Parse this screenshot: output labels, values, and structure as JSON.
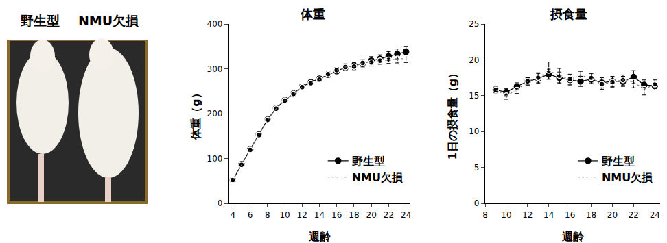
{
  "photo_labels": [
    "野生型",
    "NMU欠損"
  ],
  "chart_data": [
    {
      "type": "line",
      "title": "体重",
      "x_label": "週齢",
      "y_label": "体重（g）",
      "x": [
        4,
        5,
        6,
        7,
        8,
        9,
        10,
        11,
        12,
        13,
        14,
        15,
        16,
        17,
        18,
        19,
        20,
        21,
        22,
        23,
        24
      ],
      "series": [
        {
          "name": "野生型",
          "color": "#000000",
          "marker": "circle",
          "line_style": "solid",
          "values": [
            52,
            87,
            120,
            153,
            187,
            212,
            230,
            245,
            260,
            270,
            278,
            287,
            295,
            303,
            307,
            312,
            318,
            322,
            328,
            333,
            338
          ],
          "error": [
            3,
            3,
            3,
            3,
            3,
            4,
            4,
            4,
            4,
            5,
            5,
            6,
            6,
            7,
            7,
            8,
            9,
            9,
            10,
            11,
            12
          ]
        },
        {
          "name": "NMU欠損",
          "color": "#000000",
          "marker": "circle-open",
          "line_style": "dot",
          "values": [
            52,
            86,
            119,
            152,
            186,
            211,
            229,
            244,
            259,
            268,
            276,
            288,
            297,
            304,
            305,
            313,
            314,
            318,
            320,
            322,
            323
          ],
          "error": [
            3,
            3,
            3,
            3,
            3,
            4,
            4,
            4,
            4,
            5,
            5,
            6,
            6,
            7,
            7,
            7,
            8,
            8,
            8,
            9,
            9
          ]
        }
      ],
      "xlim": [
        3.5,
        24.5
      ],
      "xticks": [
        4,
        6,
        8,
        10,
        12,
        14,
        16,
        18,
        20,
        22,
        24
      ],
      "ylim": [
        0,
        400
      ],
      "yticks": [
        0,
        100,
        200,
        300,
        400
      ],
      "grid": false,
      "legend": "lower right"
    },
    {
      "type": "line",
      "title": "摂食量",
      "x_label": "週齢",
      "y_label": "1日の摂食量（g）",
      "x": [
        9,
        10,
        11,
        12,
        13,
        14,
        15,
        16,
        17,
        18,
        19,
        20,
        21,
        22,
        23,
        24
      ],
      "series": [
        {
          "name": "野生型",
          "color": "#000000",
          "marker": "circle",
          "line_style": "solid",
          "values": [
            15.8,
            15.5,
            16.3,
            17.0,
            17.4,
            18.0,
            17.5,
            17.2,
            17.0,
            17.3,
            16.8,
            17.0,
            17.0,
            17.6,
            16.5,
            16.4
          ],
          "error": [
            0.4,
            0.5,
            0.5,
            0.5,
            0.7,
            0.7,
            0.8,
            0.7,
            0.7,
            0.6,
            0.7,
            0.7,
            0.7,
            0.9,
            0.7,
            0.6
          ]
        },
        {
          "name": "NMU欠損",
          "color": "#000000",
          "marker": "circle-open",
          "line_style": "dot",
          "values": [
            15.8,
            15.0,
            15.8,
            17.0,
            17.5,
            18.5,
            17.8,
            17.3,
            17.8,
            17.5,
            16.6,
            16.9,
            17.2,
            16.9,
            15.9,
            16.6
          ],
          "error": [
            0.4,
            0.5,
            0.5,
            0.5,
            0.7,
            1.2,
            1.0,
            0.7,
            0.6,
            0.6,
            0.7,
            0.7,
            0.7,
            0.8,
            0.8,
            0.6
          ]
        }
      ],
      "xlim": [
        8,
        24.5
      ],
      "xticks": [
        8,
        10,
        12,
        14,
        16,
        18,
        20,
        22,
        24
      ],
      "ylim": [
        0,
        25
      ],
      "yticks": [
        0,
        5,
        10,
        15,
        20,
        25
      ],
      "grid": false,
      "legend": "lower right"
    }
  ]
}
